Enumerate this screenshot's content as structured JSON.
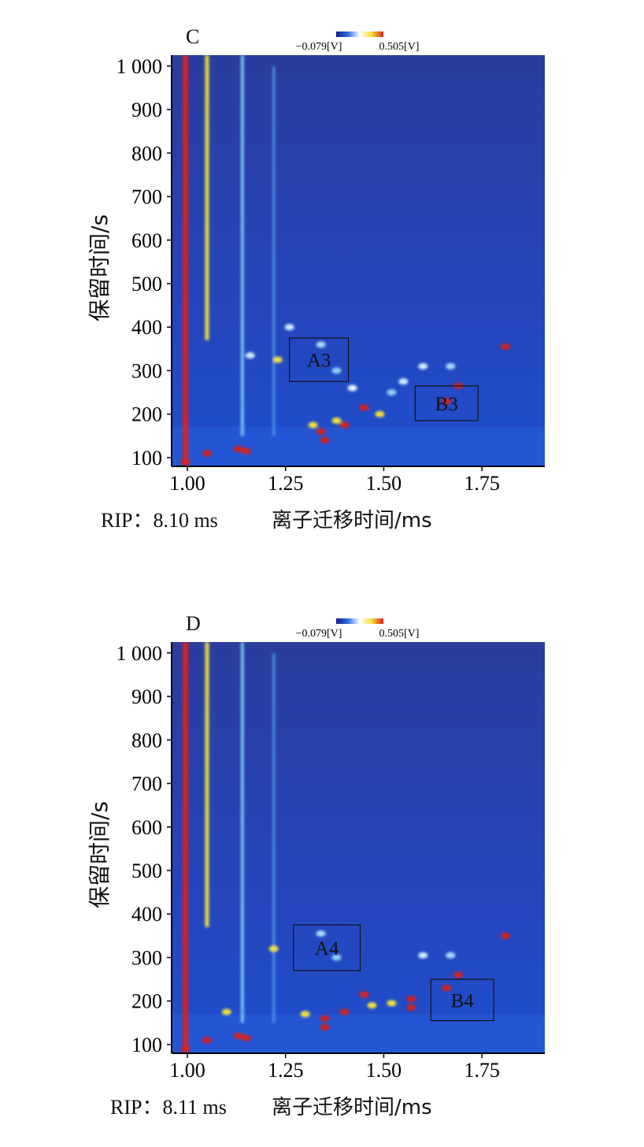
{
  "chart_data": [
    {
      "type": "heatmap",
      "panel": "C",
      "colorbar": {
        "min_label": "−0.079[V]",
        "max_label": "0.505[V]",
        "colors": [
          "#1a1a8c",
          "#2c6fe0",
          "#ffffff",
          "#f3e13a",
          "#d8231f"
        ]
      },
      "xlabel": "离子迁移时间/ms",
      "ylabel": "保留时间/s",
      "xticks": [
        "1.00",
        "1.25",
        "1.50",
        "1.75"
      ],
      "yticks": [
        "100",
        "200",
        "300",
        "400",
        "500",
        "600",
        "700",
        "800",
        "900",
        "1 000"
      ],
      "xlim": [
        0.96,
        1.91
      ],
      "ylim": [
        80,
        1025
      ],
      "rip_label": "RIP：8.10 ms",
      "boxes": [
        {
          "label": "A3",
          "x": [
            1.26,
            1.41
          ],
          "y": [
            275,
            375
          ]
        },
        {
          "label": "B3",
          "x": [
            1.58,
            1.74
          ],
          "y": [
            185,
            265
          ]
        }
      ],
      "streaks": [
        {
          "x": 0.995,
          "y": [
            80,
            1025
          ],
          "color": "#d8231f",
          "w": 7
        },
        {
          "x": 1.05,
          "y": [
            370,
            1025
          ],
          "color": "#f3e13a",
          "w": 5
        },
        {
          "x": 1.14,
          "y": [
            150,
            1025
          ],
          "color": "#7fc8ef",
          "w": 4
        },
        {
          "x": 1.22,
          "y": [
            150,
            1000
          ],
          "color": "#4f9ae6",
          "w": 3
        }
      ],
      "spots": [
        {
          "x": 1.26,
          "y": 400,
          "c": "#cdeefa"
        },
        {
          "x": 1.34,
          "y": 360,
          "c": "#a9dcf5"
        },
        {
          "x": 1.23,
          "y": 325,
          "c": "#f3e13a"
        },
        {
          "x": 1.16,
          "y": 335,
          "c": "#cdeefa"
        },
        {
          "x": 1.38,
          "y": 300,
          "c": "#8fd1f1"
        },
        {
          "x": 1.42,
          "y": 260,
          "c": "#e6f6fd"
        },
        {
          "x": 1.45,
          "y": 215,
          "c": "#d8231f"
        },
        {
          "x": 1.4,
          "y": 175,
          "c": "#d8231f"
        },
        {
          "x": 1.34,
          "y": 160,
          "c": "#d8231f"
        },
        {
          "x": 1.35,
          "y": 140,
          "c": "#d8231f"
        },
        {
          "x": 1.32,
          "y": 175,
          "c": "#f3e13a"
        },
        {
          "x": 1.81,
          "y": 355,
          "c": "#d8231f"
        },
        {
          "x": 1.69,
          "y": 265,
          "c": "#d8231f"
        },
        {
          "x": 1.66,
          "y": 230,
          "c": "#d8231f"
        },
        {
          "x": 1.6,
          "y": 310,
          "c": "#cdeefa"
        },
        {
          "x": 1.67,
          "y": 310,
          "c": "#a9dcf5"
        },
        {
          "x": 1.55,
          "y": 275,
          "c": "#cdeefa"
        },
        {
          "x": 1.52,
          "y": 250,
          "c": "#8fd1f1"
        },
        {
          "x": 1.13,
          "y": 120,
          "c": "#d8231f"
        },
        {
          "x": 1.15,
          "y": 115,
          "c": "#d8231f"
        },
        {
          "x": 1.05,
          "y": 110,
          "c": "#d8231f"
        },
        {
          "x": 0.995,
          "y": 90,
          "c": "#d8231f"
        },
        {
          "x": 1.49,
          "y": 200,
          "c": "#f3e13a"
        },
        {
          "x": 1.38,
          "y": 185,
          "c": "#f3e13a"
        }
      ]
    },
    {
      "type": "heatmap",
      "panel": "D",
      "colorbar": {
        "min_label": "−0.079[V]",
        "max_label": "0.505[V]",
        "colors": [
          "#1a1a8c",
          "#2c6fe0",
          "#ffffff",
          "#f3e13a",
          "#d8231f"
        ]
      },
      "xlabel": "离子迁移时间/ms",
      "ylabel": "保留时间/s",
      "xticks": [
        "1.00",
        "1.25",
        "1.50",
        "1.75"
      ],
      "yticks": [
        "100",
        "200",
        "300",
        "400",
        "500",
        "600",
        "700",
        "800",
        "900",
        "1 000"
      ],
      "xlim": [
        0.96,
        1.91
      ],
      "ylim": [
        80,
        1025
      ],
      "rip_label": "RIP：8.11 ms",
      "boxes": [
        {
          "label": "A4",
          "x": [
            1.27,
            1.44
          ],
          "y": [
            270,
            375
          ]
        },
        {
          "label": "B4",
          "x": [
            1.62,
            1.78
          ],
          "y": [
            155,
            250
          ]
        }
      ],
      "streaks": [
        {
          "x": 0.995,
          "y": [
            80,
            1025
          ],
          "color": "#d8231f",
          "w": 7
        },
        {
          "x": 1.05,
          "y": [
            370,
            1025
          ],
          "color": "#f3e13a",
          "w": 5
        },
        {
          "x": 1.14,
          "y": [
            150,
            1025
          ],
          "color": "#7fc8ef",
          "w": 4
        },
        {
          "x": 1.22,
          "y": [
            150,
            1000
          ],
          "color": "#4f9ae6",
          "w": 3
        }
      ],
      "spots": [
        {
          "x": 1.34,
          "y": 355,
          "c": "#a9dcf5"
        },
        {
          "x": 1.22,
          "y": 320,
          "c": "#f3e13a"
        },
        {
          "x": 1.38,
          "y": 300,
          "c": "#8fd1f1"
        },
        {
          "x": 1.45,
          "y": 215,
          "c": "#d8231f"
        },
        {
          "x": 1.4,
          "y": 175,
          "c": "#d8231f"
        },
        {
          "x": 1.35,
          "y": 160,
          "c": "#d8231f"
        },
        {
          "x": 1.35,
          "y": 140,
          "c": "#d8231f"
        },
        {
          "x": 1.81,
          "y": 350,
          "c": "#d8231f"
        },
        {
          "x": 1.69,
          "y": 260,
          "c": "#d8231f"
        },
        {
          "x": 1.66,
          "y": 230,
          "c": "#d8231f"
        },
        {
          "x": 1.57,
          "y": 205,
          "c": "#d8231f"
        },
        {
          "x": 1.57,
          "y": 185,
          "c": "#d8231f"
        },
        {
          "x": 1.52,
          "y": 195,
          "c": "#f3e13a"
        },
        {
          "x": 1.47,
          "y": 190,
          "c": "#f3e13a"
        },
        {
          "x": 1.6,
          "y": 305,
          "c": "#cdeefa"
        },
        {
          "x": 1.67,
          "y": 305,
          "c": "#a9dcf5"
        },
        {
          "x": 1.13,
          "y": 120,
          "c": "#d8231f"
        },
        {
          "x": 1.15,
          "y": 115,
          "c": "#d8231f"
        },
        {
          "x": 1.05,
          "y": 110,
          "c": "#d8231f"
        },
        {
          "x": 0.995,
          "y": 90,
          "c": "#d8231f"
        },
        {
          "x": 1.1,
          "y": 175,
          "c": "#f3e13a"
        },
        {
          "x": 1.3,
          "y": 170,
          "c": "#f3e13a"
        }
      ]
    }
  ]
}
